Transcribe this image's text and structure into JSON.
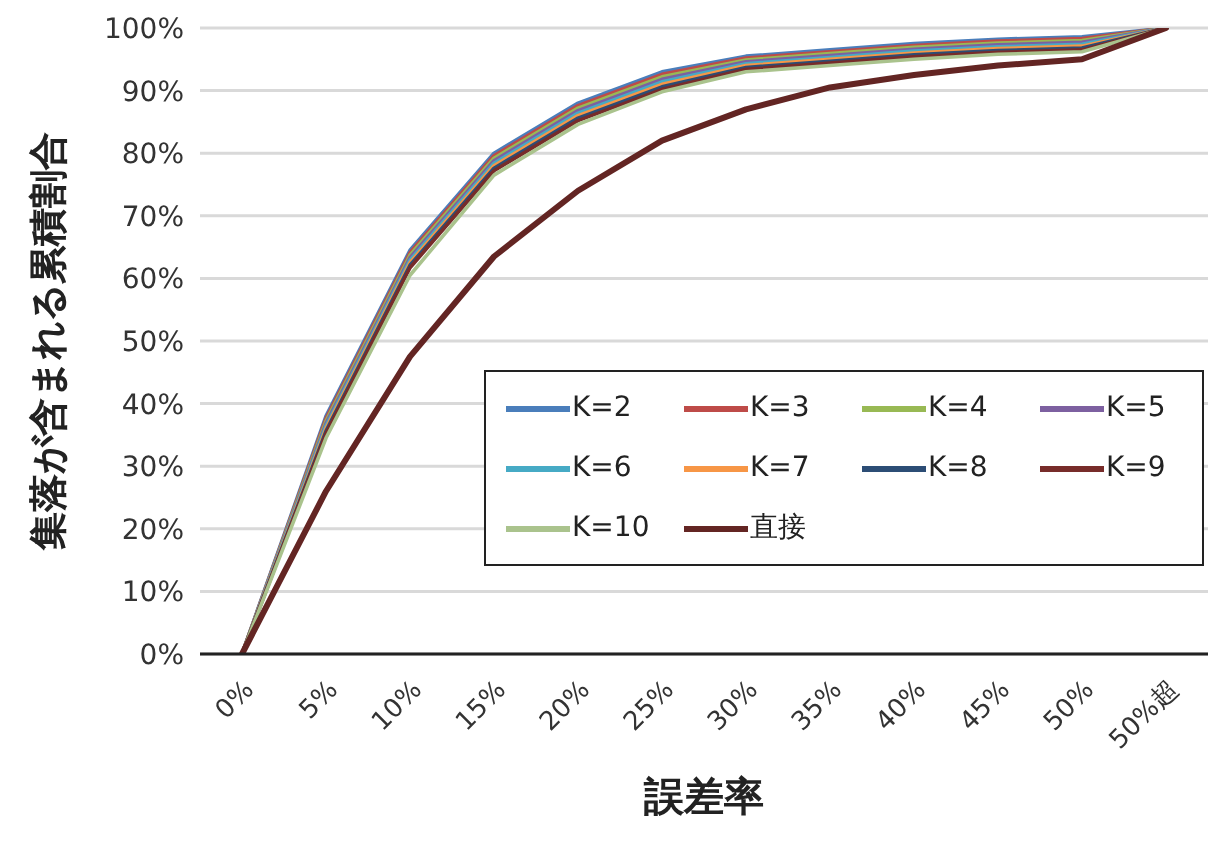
{
  "chart_data": {
    "type": "line",
    "xlabel": "誤差率",
    "ylabel": "集落が含まれる累積割合",
    "categories": [
      "0%",
      "5%",
      "10%",
      "15%",
      "20%",
      "25%",
      "30%",
      "35%",
      "40%",
      "45%",
      "50%",
      "50%超"
    ],
    "ylim": [
      0,
      100
    ],
    "yticks": [
      {
        "value": 0,
        "label": "0%"
      },
      {
        "value": 10,
        "label": "10%"
      },
      {
        "value": 20,
        "label": "20%"
      },
      {
        "value": 30,
        "label": "30%"
      },
      {
        "value": 40,
        "label": "40%"
      },
      {
        "value": 50,
        "label": "50%"
      },
      {
        "value": 60,
        "label": "60%"
      },
      {
        "value": 70,
        "label": "70%"
      },
      {
        "value": 80,
        "label": "80%"
      },
      {
        "value": 90,
        "label": "90%"
      },
      {
        "value": 100,
        "label": "100%"
      }
    ],
    "grid": "y",
    "legend": "right",
    "marker": "none",
    "line_style": "solid",
    "series": [
      {
        "name": "K=2",
        "color": "#4a7ebb",
        "values": [
          0,
          38,
          64.5,
          80,
          88,
          93,
          95.5,
          96.5,
          97.5,
          98.2,
          98.6,
          100
        ]
      },
      {
        "name": "K=3",
        "color": "#be4b48",
        "values": [
          0,
          37.6,
          64.1,
          79.6,
          87.6,
          92.6,
          95.2,
          96.2,
          97.2,
          97.9,
          98.3,
          100
        ]
      },
      {
        "name": "K=4",
        "color": "#98b954",
        "values": [
          0,
          37.2,
          63.7,
          79.2,
          87.2,
          92.2,
          94.9,
          95.9,
          96.9,
          97.6,
          98,
          100
        ]
      },
      {
        "name": "K=5",
        "color": "#7d60a0",
        "values": [
          0,
          36.8,
          63.3,
          78.8,
          86.8,
          91.8,
          94.6,
          95.6,
          96.6,
          97.3,
          97.7,
          100
        ]
      },
      {
        "name": "K=6",
        "color": "#46aac5",
        "values": [
          0,
          36.4,
          62.9,
          78.4,
          86.4,
          91.4,
          94.3,
          95.3,
          96.3,
          97,
          97.4,
          100
        ]
      },
      {
        "name": "K=7",
        "color": "#f79646",
        "values": [
          0,
          36,
          62.5,
          78,
          86,
          91,
          94,
          95,
          96,
          96.7,
          97.1,
          100
        ]
      },
      {
        "name": "K=8",
        "color": "#2c4d75",
        "values": [
          0,
          35.6,
          62.1,
          77.6,
          85.6,
          90.6,
          93.7,
          94.7,
          95.7,
          96.4,
          96.8,
          100
        ]
      },
      {
        "name": "K=9",
        "color": "#772c2a",
        "values": [
          0,
          35.2,
          61.7,
          77.2,
          85.2,
          90.2,
          93.4,
          94.4,
          95.4,
          96.1,
          96.5,
          100
        ]
      },
      {
        "name": "K=10",
        "color": "#aac38d",
        "values": [
          0,
          34.5,
          60.5,
          76.5,
          84.6,
          89.8,
          93,
          94,
          95,
          95.8,
          96.2,
          100
        ]
      },
      {
        "name": "直接",
        "color": "#632523",
        "values": [
          0,
          26,
          47.5,
          63.5,
          74,
          82,
          87,
          90.5,
          92.5,
          94,
          95,
          100
        ]
      }
    ]
  }
}
